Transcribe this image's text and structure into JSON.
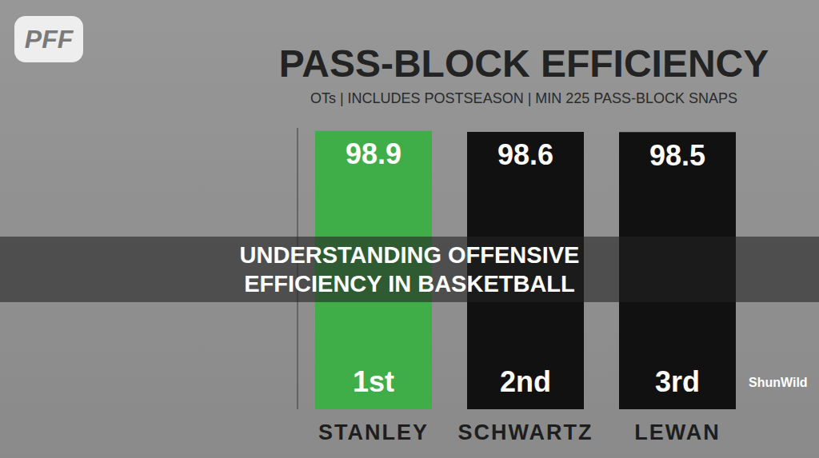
{
  "header": {
    "logo": "PFF",
    "banner": "UNDERSTANDING OFFENSIVE EFFICIENCY IN BASKETBALL",
    "watermark": "ShunWild"
  },
  "chart_data": {
    "type": "bar",
    "title": "PASS-BLOCK EFFICIENCY",
    "subtitle": "OTs | INCLUDES POSTSEASON | MIN 225 PASS-BLOCK SNAPS",
    "categories": [
      "STANLEY",
      "SCHWARTZ",
      "LEWAN"
    ],
    "values": [
      98.9,
      98.6,
      98.5
    ],
    "ranks": [
      "1st",
      "2nd",
      "3rd"
    ],
    "colors": [
      "#3fae49",
      "#111111",
      "#111111"
    ],
    "ylim": [
      0,
      100
    ],
    "yticks": [
      0,
      100
    ],
    "grid": false,
    "data_labels": true,
    "tick_labels": "x"
  }
}
